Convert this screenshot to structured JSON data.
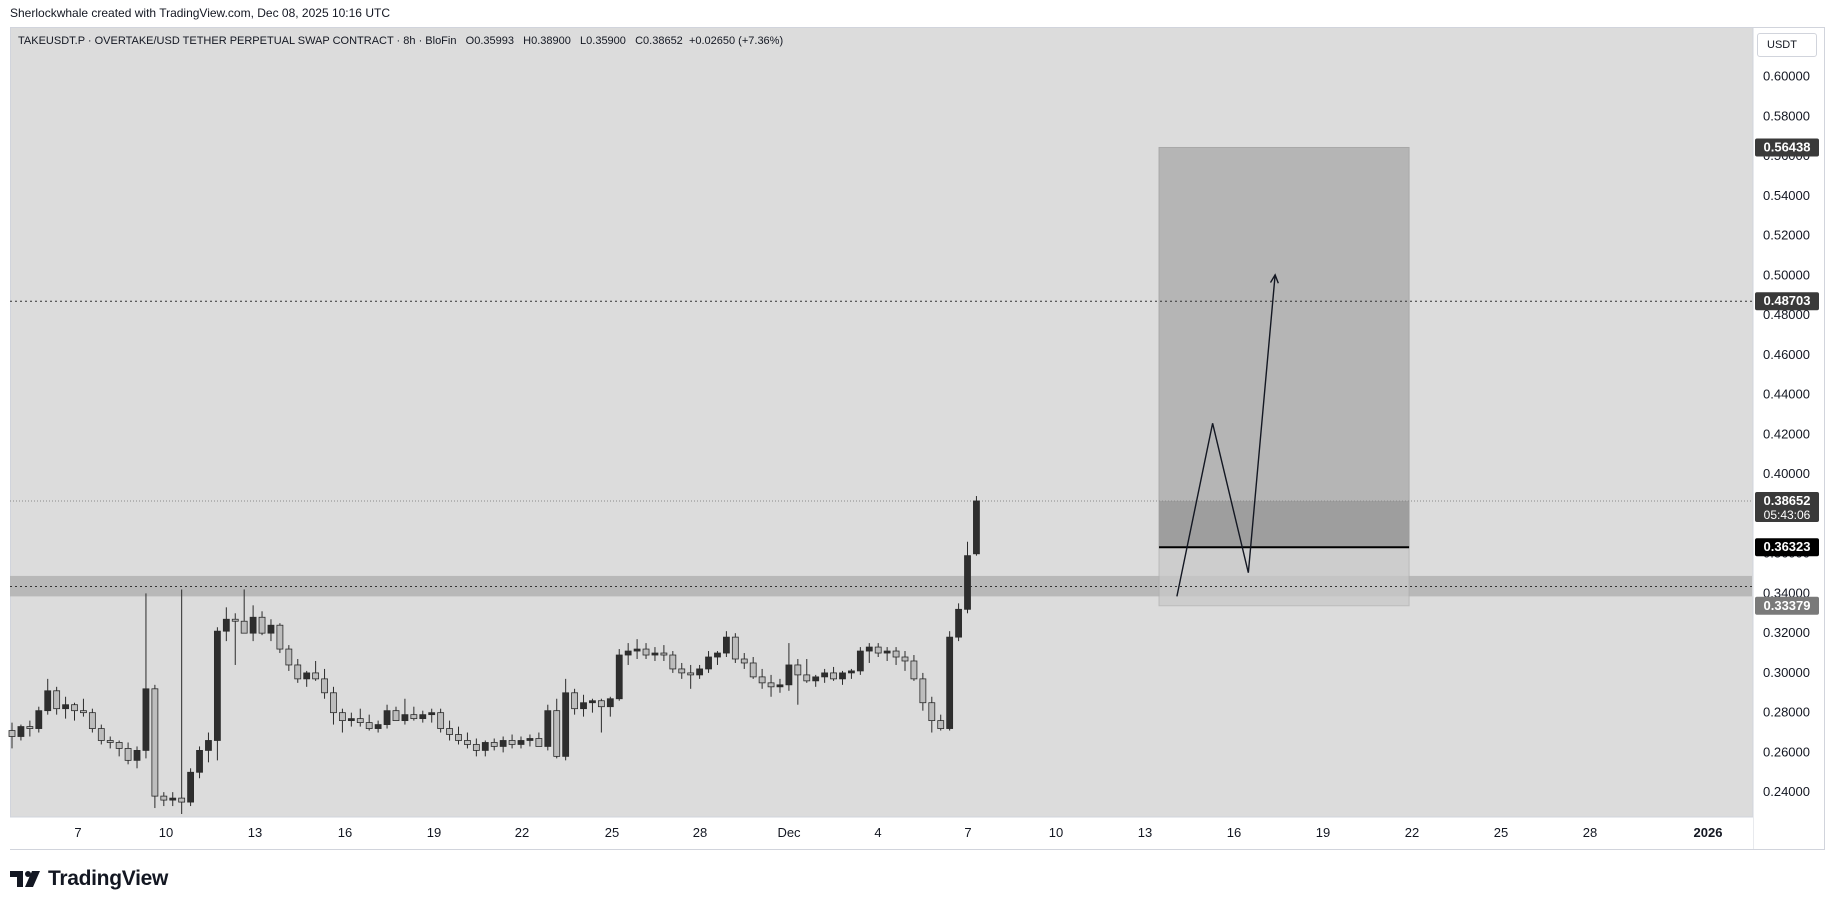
{
  "caption": "Sherlockwhale created with TradingView.com, Dec 08, 2025 10:16 UTC",
  "legend": {
    "symbol": "TAKEUSDT.P · OVERTAKE/USD TETHER PERPETUAL SWAP CONTRACT · 8h · BloFin",
    "open": "O0.35993",
    "high": "H0.38900",
    "low": "L0.35900",
    "close": "C0.38652",
    "change": "+0.02650 (+7.36%)"
  },
  "currency_button": "USDT",
  "brand": {
    "name": "TradingView",
    "logo_icon": "tradingview-logo-icon"
  },
  "chart_data": {
    "type": "candlestick",
    "symbol": "TAKEUSDT.P",
    "interval": "8h",
    "ylim": [
      0.228,
      0.6245
    ],
    "y_ticks": [
      "0.24000",
      "0.26000",
      "0.28000",
      "0.30000",
      "0.32000",
      "0.34000",
      "0.36000",
      "0.38000",
      "0.40000",
      "0.42000",
      "0.44000",
      "0.46000",
      "0.48000",
      "0.50000",
      "0.52000",
      "0.54000",
      "0.56000",
      "0.58000",
      "0.60000"
    ],
    "x_ticks": [
      "7",
      "10",
      "13",
      "16",
      "19",
      "22",
      "25",
      "28",
      "Dec",
      "4",
      "7",
      "10",
      "13",
      "16",
      "19",
      "22",
      "25",
      "28",
      "2026"
    ],
    "grid": false,
    "price_labels": [
      {
        "value": 0.56438,
        "text": "0.56438",
        "style": "dark"
      },
      {
        "value": 0.48703,
        "text": "0.48703",
        "style": "dark"
      },
      {
        "value": 0.38652,
        "text": "0.38652",
        "sub": "05:43:06",
        "style": "dark"
      },
      {
        "value": 0.36323,
        "text": "0.36323",
        "style": "black"
      },
      {
        "value": 0.33379,
        "text": "0.33379",
        "style": "grey"
      }
    ],
    "levels": [
      {
        "value": 0.48703,
        "style": "dotted"
      },
      {
        "value": 0.38652,
        "style": "dotted-light"
      },
      {
        "value": 0.3435,
        "style": "dotted"
      }
    ],
    "support_zone": [
      0.3385,
      0.3488
    ],
    "position": {
      "entry": 0.36323,
      "target": 0.56438,
      "stop": 0.33379,
      "start_index": 128,
      "end_index": 156
    },
    "projection": [
      [
        130,
        0.3385
      ],
      [
        134,
        0.4256
      ],
      [
        138,
        0.3504
      ],
      [
        141,
        0.5003
      ]
    ],
    "candles": [
      [
        0.271,
        0.275,
        0.262,
        0.268
      ],
      [
        0.268,
        0.274,
        0.266,
        0.273
      ],
      [
        0.273,
        0.276,
        0.268,
        0.272
      ],
      [
        0.272,
        0.283,
        0.27,
        0.281
      ],
      [
        0.281,
        0.297,
        0.279,
        0.291
      ],
      [
        0.291,
        0.293,
        0.279,
        0.282
      ],
      [
        0.282,
        0.288,
        0.277,
        0.284
      ],
      [
        0.284,
        0.285,
        0.276,
        0.281
      ],
      [
        0.281,
        0.287,
        0.278,
        0.28
      ],
      [
        0.28,
        0.282,
        0.27,
        0.272
      ],
      [
        0.272,
        0.274,
        0.264,
        0.266
      ],
      [
        0.266,
        0.268,
        0.262,
        0.265
      ],
      [
        0.265,
        0.266,
        0.258,
        0.262
      ],
      [
        0.262,
        0.265,
        0.254,
        0.256
      ],
      [
        0.256,
        0.263,
        0.252,
        0.261
      ],
      [
        0.261,
        0.34,
        0.257,
        0.292
      ],
      [
        0.292,
        0.294,
        0.232,
        0.238
      ],
      [
        0.238,
        0.24,
        0.233,
        0.236
      ],
      [
        0.236,
        0.24,
        0.233,
        0.237
      ],
      [
        0.237,
        0.342,
        0.229,
        0.235
      ],
      [
        0.235,
        0.252,
        0.233,
        0.25
      ],
      [
        0.25,
        0.263,
        0.247,
        0.261
      ],
      [
        0.261,
        0.27,
        0.255,
        0.266
      ],
      [
        0.266,
        0.323,
        0.256,
        0.321
      ],
      [
        0.321,
        0.333,
        0.316,
        0.327
      ],
      [
        0.327,
        0.33,
        0.304,
        0.326
      ],
      [
        0.326,
        0.342,
        0.322,
        0.32
      ],
      [
        0.32,
        0.334,
        0.316,
        0.328
      ],
      [
        0.328,
        0.331,
        0.319,
        0.32
      ],
      [
        0.32,
        0.327,
        0.316,
        0.324
      ],
      [
        0.324,
        0.325,
        0.31,
        0.312
      ],
      [
        0.312,
        0.314,
        0.301,
        0.304
      ],
      [
        0.304,
        0.307,
        0.295,
        0.297
      ],
      [
        0.297,
        0.301,
        0.293,
        0.3
      ],
      [
        0.3,
        0.306,
        0.296,
        0.297
      ],
      [
        0.297,
        0.302,
        0.287,
        0.29
      ],
      [
        0.29,
        0.293,
        0.274,
        0.28
      ],
      [
        0.28,
        0.282,
        0.27,
        0.276
      ],
      [
        0.276,
        0.28,
        0.273,
        0.277
      ],
      [
        0.277,
        0.282,
        0.273,
        0.275
      ],
      [
        0.275,
        0.279,
        0.271,
        0.272
      ],
      [
        0.272,
        0.276,
        0.27,
        0.274
      ],
      [
        0.274,
        0.284,
        0.272,
        0.281
      ],
      [
        0.281,
        0.283,
        0.276,
        0.276
      ],
      [
        0.276,
        0.287,
        0.274,
        0.279
      ],
      [
        0.279,
        0.283,
        0.276,
        0.277
      ],
      [
        0.277,
        0.281,
        0.275,
        0.279
      ],
      [
        0.279,
        0.282,
        0.275,
        0.28
      ],
      [
        0.28,
        0.282,
        0.27,
        0.272
      ],
      [
        0.272,
        0.276,
        0.266,
        0.269
      ],
      [
        0.269,
        0.273,
        0.264,
        0.266
      ],
      [
        0.266,
        0.27,
        0.262,
        0.264
      ],
      [
        0.264,
        0.267,
        0.258,
        0.261
      ],
      [
        0.261,
        0.266,
        0.258,
        0.265
      ],
      [
        0.265,
        0.267,
        0.261,
        0.263
      ],
      [
        0.263,
        0.268,
        0.26,
        0.266
      ],
      [
        0.266,
        0.269,
        0.262,
        0.264
      ],
      [
        0.264,
        0.268,
        0.262,
        0.266
      ],
      [
        0.266,
        0.269,
        0.263,
        0.267
      ],
      [
        0.267,
        0.27,
        0.263,
        0.263
      ],
      [
        0.263,
        0.284,
        0.261,
        0.281
      ],
      [
        0.281,
        0.287,
        0.257,
        0.258
      ],
      [
        0.258,
        0.297,
        0.256,
        0.29
      ],
      [
        0.29,
        0.292,
        0.279,
        0.282
      ],
      [
        0.282,
        0.289,
        0.278,
        0.285
      ],
      [
        0.285,
        0.287,
        0.28,
        0.286
      ],
      [
        0.286,
        0.287,
        0.27,
        0.283
      ],
      [
        0.283,
        0.288,
        0.278,
        0.287
      ],
      [
        0.287,
        0.312,
        0.286,
        0.309
      ],
      [
        0.309,
        0.315,
        0.304,
        0.311
      ],
      [
        0.311,
        0.317,
        0.307,
        0.312
      ],
      [
        0.312,
        0.315,
        0.307,
        0.309
      ],
      [
        0.309,
        0.313,
        0.306,
        0.31
      ],
      [
        0.31,
        0.314,
        0.306,
        0.309
      ],
      [
        0.309,
        0.311,
        0.3,
        0.302
      ],
      [
        0.302,
        0.305,
        0.297,
        0.3
      ],
      [
        0.3,
        0.304,
        0.292,
        0.299
      ],
      [
        0.299,
        0.304,
        0.297,
        0.302
      ],
      [
        0.302,
        0.311,
        0.3,
        0.308
      ],
      [
        0.308,
        0.311,
        0.304,
        0.31
      ],
      [
        0.31,
        0.321,
        0.308,
        0.318
      ],
      [
        0.318,
        0.32,
        0.305,
        0.307
      ],
      [
        0.307,
        0.31,
        0.302,
        0.305
      ],
      [
        0.305,
        0.308,
        0.297,
        0.298
      ],
      [
        0.298,
        0.302,
        0.292,
        0.295
      ],
      [
        0.295,
        0.299,
        0.288,
        0.293
      ],
      [
        0.293,
        0.297,
        0.29,
        0.294
      ],
      [
        0.294,
        0.315,
        0.291,
        0.304
      ],
      [
        0.304,
        0.307,
        0.284,
        0.299
      ],
      [
        0.299,
        0.307,
        0.295,
        0.296
      ],
      [
        0.296,
        0.299,
        0.293,
        0.298
      ],
      [
        0.298,
        0.302,
        0.295,
        0.3
      ],
      [
        0.3,
        0.303,
        0.296,
        0.297
      ],
      [
        0.297,
        0.301,
        0.294,
        0.3
      ],
      [
        0.3,
        0.302,
        0.297,
        0.301
      ],
      [
        0.301,
        0.313,
        0.299,
        0.311
      ],
      [
        0.311,
        0.315,
        0.305,
        0.313
      ],
      [
        0.313,
        0.315,
        0.308,
        0.31
      ],
      [
        0.31,
        0.313,
        0.306,
        0.311
      ],
      [
        0.311,
        0.313,
        0.304,
        0.308
      ],
      [
        0.308,
        0.311,
        0.301,
        0.306
      ],
      [
        0.306,
        0.309,
        0.296,
        0.297
      ],
      [
        0.297,
        0.3,
        0.281,
        0.285
      ],
      [
        0.285,
        0.288,
        0.27,
        0.276
      ],
      [
        0.276,
        0.279,
        0.271,
        0.272
      ],
      [
        0.272,
        0.321,
        0.271,
        0.318
      ],
      [
        0.318,
        0.335,
        0.316,
        0.332
      ],
      [
        0.332,
        0.366,
        0.33,
        0.359
      ],
      [
        0.35993,
        0.389,
        0.359,
        0.38652
      ]
    ]
  }
}
